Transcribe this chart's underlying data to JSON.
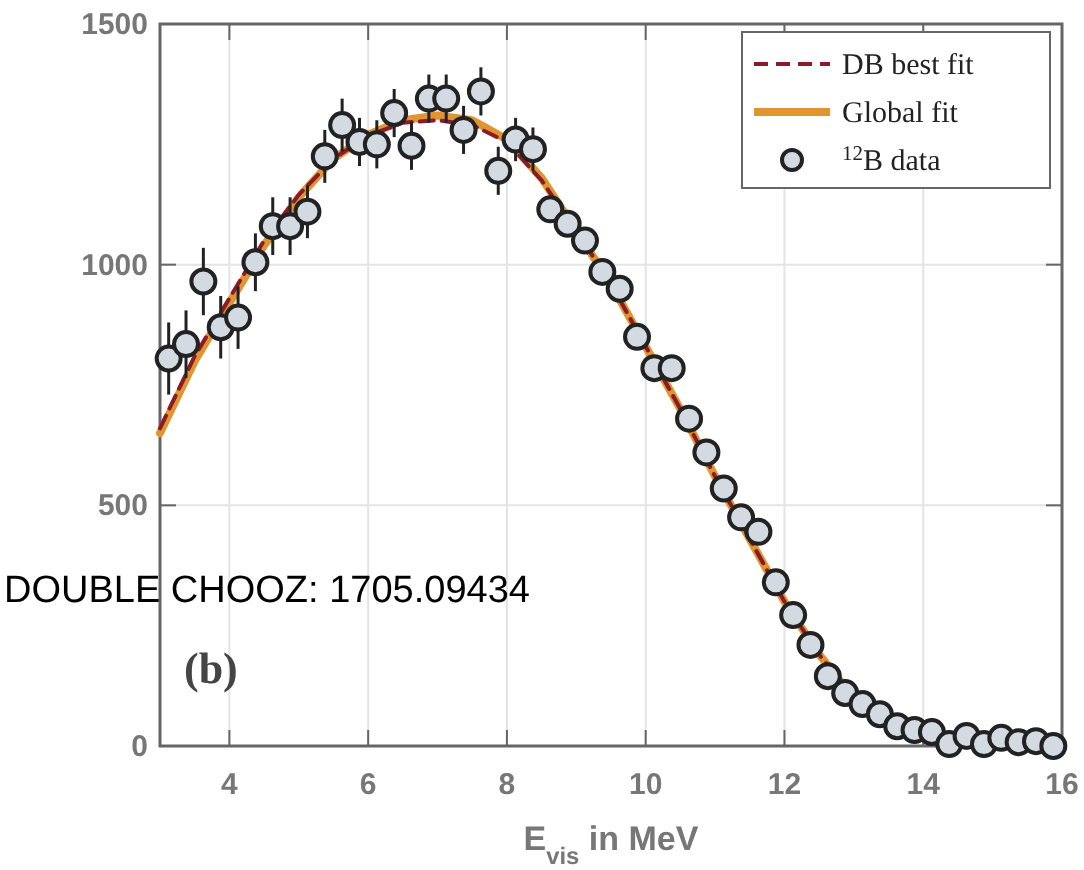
{
  "chart_data": {
    "type": "scatter",
    "xlabel": "E$_{vis}$ in MeV",
    "xlim": [
      3,
      16
    ],
    "xticks": [
      4,
      6,
      8,
      10,
      12,
      14,
      16
    ],
    "ylim": [
      0,
      1500
    ],
    "yticks": [
      0,
      500,
      1000,
      1500
    ],
    "grid": true,
    "legend": "top right",
    "annotations": [
      "(b)",
      "DOUBLE CHOOZ: 1705.09434"
    ],
    "series": [
      {
        "name": "DB best fit",
        "type": "line",
        "line_style": "dashed",
        "color": "#8b1a2b",
        "x": [
          3,
          3.5,
          4,
          4.5,
          5,
          5.5,
          6,
          6.5,
          7,
          7.5,
          8,
          8.5,
          9,
          9.5,
          10,
          10.5,
          11,
          11.5,
          12,
          12.5,
          13,
          13.5
        ],
        "values": [
          660,
          810,
          930,
          1050,
          1145,
          1220,
          1268,
          1295,
          1300,
          1290,
          1255,
          1175,
          1070,
          960,
          830,
          700,
          560,
          430,
          300,
          190,
          100,
          45
        ]
      },
      {
        "name": "Global fit",
        "type": "line",
        "line_style": "solid",
        "color": "#e0952e",
        "x": [
          3,
          3.5,
          4,
          4.5,
          5,
          5.5,
          6,
          6.5,
          7,
          7.5,
          8,
          8.5,
          9,
          9.5,
          10,
          10.5,
          11,
          11.5,
          12,
          12.5,
          13,
          13.5
        ],
        "values": [
          650,
          800,
          920,
          1040,
          1140,
          1220,
          1270,
          1300,
          1310,
          1300,
          1260,
          1180,
          1070,
          960,
          830,
          700,
          560,
          430,
          300,
          190,
          100,
          45
        ]
      },
      {
        "name": "$^{12}$B data",
        "marker": "circle",
        "color": "#d3dae2",
        "x": [
          3.125,
          3.375,
          3.625,
          3.875,
          4.125,
          4.375,
          4.625,
          4.875,
          5.125,
          5.375,
          5.625,
          5.875,
          6.125,
          6.375,
          6.625,
          6.875,
          7.125,
          7.375,
          7.625,
          7.875,
          8.125,
          8.375,
          8.625,
          8.875,
          9.125,
          9.375,
          9.625,
          9.875,
          10.125,
          10.375,
          10.625,
          10.875,
          11.125,
          11.375,
          11.625,
          11.875,
          12.125,
          12.375,
          12.625,
          12.875,
          13.125,
          13.375,
          13.625,
          13.875,
          14.125,
          14.375,
          14.625,
          14.875,
          15.125,
          15.375,
          15.625,
          15.875
        ],
        "values": [
          805,
          835,
          965,
          870,
          890,
          1005,
          1080,
          1080,
          1110,
          1225,
          1290,
          1255,
          1250,
          1315,
          1247,
          1345,
          1345,
          1280,
          1360,
          1195,
          1260,
          1240,
          1115,
          1085,
          1050,
          985,
          950,
          850,
          785,
          785,
          680,
          610,
          535,
          475,
          445,
          340,
          272,
          210,
          145,
          110,
          87,
          66,
          41,
          33,
          29,
          4,
          21,
          4,
          17,
          8,
          10,
          0
        ],
        "errors": [
          75,
          70,
          70,
          65,
          65,
          60,
          60,
          60,
          55,
          55,
          55,
          50,
          50,
          50,
          50,
          50,
          50,
          50,
          50,
          50,
          45,
          45,
          null,
          null,
          null,
          null,
          null,
          null,
          null,
          null,
          null,
          null,
          null,
          null,
          null,
          null,
          null,
          null,
          null,
          null,
          null,
          null,
          null,
          null,
          null,
          null,
          null,
          null,
          null,
          null,
          null,
          null
        ]
      }
    ]
  }
}
